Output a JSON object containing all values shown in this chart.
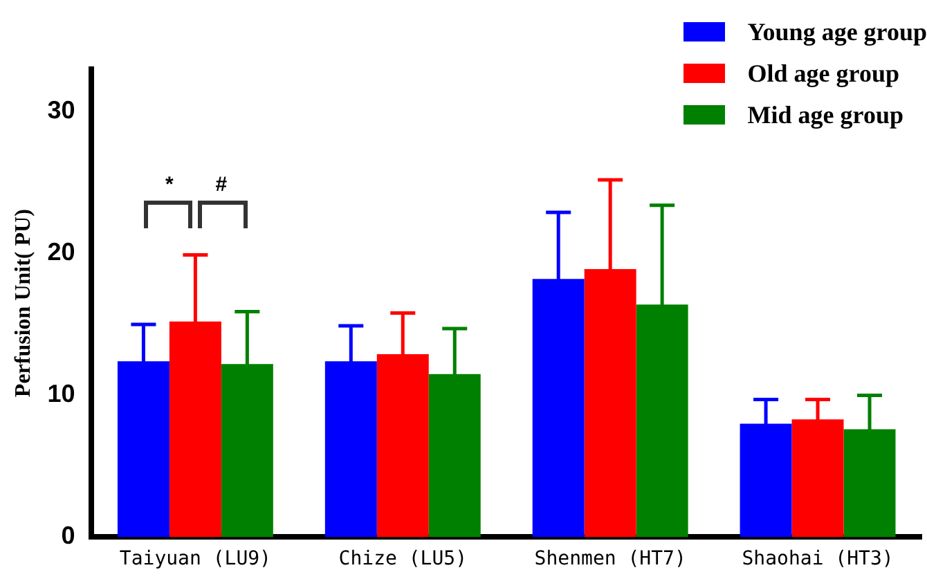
{
  "chart_data": {
    "type": "bar",
    "ylabel": "Perfusion Unit( PU)",
    "categories": [
      "Taiyuan (LU9)",
      "Chize (LU5)",
      "Shenmen (HT7)",
      "Shaohai (HT3)"
    ],
    "series": [
      {
        "name": "Young age group",
        "color": "#0000ff",
        "values": [
          12.4,
          12.4,
          18.2,
          8.0
        ],
        "errors": [
          2.6,
          2.5,
          4.7,
          1.7
        ]
      },
      {
        "name": "Old age group",
        "color": "#ff0000",
        "values": [
          15.2,
          12.9,
          18.9,
          8.3
        ],
        "errors": [
          4.7,
          2.9,
          6.3,
          1.4
        ]
      },
      {
        "name": "Mid age group",
        "color": "#008000",
        "values": [
          12.2,
          11.5,
          16.4,
          7.6
        ],
        "errors": [
          3.7,
          3.2,
          7.0,
          2.4
        ]
      }
    ],
    "ylim": [
      0,
      33
    ],
    "yticks": [
      0,
      10,
      20,
      30
    ],
    "grid": false,
    "legend": "top right",
    "annotations": [
      "*",
      "#"
    ]
  }
}
